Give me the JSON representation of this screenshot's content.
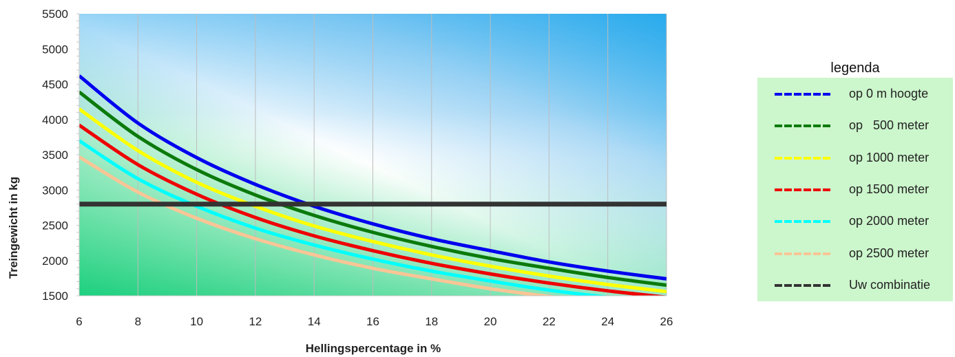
{
  "chart_data": {
    "type": "line",
    "xlabel": "Hellingspercentage in %",
    "ylabel": "Treingewicht in kg",
    "xlim": [
      6,
      26
    ],
    "ylim": [
      1500,
      5500
    ],
    "x_ticks": [
      6,
      8,
      10,
      12,
      14,
      16,
      18,
      20,
      22,
      24,
      26
    ],
    "y_ticks": [
      1500,
      2000,
      2500,
      3000,
      3500,
      4000,
      4500,
      5000,
      5500
    ],
    "grid": "vertical",
    "legend_position": "right",
    "x": [
      6,
      8,
      10,
      12,
      14,
      16,
      18,
      20,
      22,
      24,
      26
    ],
    "series": [
      {
        "name": "op 0 m hoogte",
        "color": "#0000ee",
        "values": [
          4620,
          3950,
          3460,
          3080,
          2770,
          2520,
          2310,
          2140,
          1980,
          1850,
          1740
        ]
      },
      {
        "name": "op   500 meter",
        "color": "#0b7a0b",
        "values": [
          4390,
          3760,
          3290,
          2930,
          2640,
          2400,
          2200,
          2030,
          1890,
          1760,
          1650
        ]
      },
      {
        "name": "op 1000 meter",
        "color": "#ffff00",
        "values": [
          4150,
          3560,
          3110,
          2770,
          2490,
          2270,
          2080,
          1920,
          1780,
          1660,
          1560
        ]
      },
      {
        "name": "op 1500 meter",
        "color": "#ee0000",
        "values": [
          3920,
          3360,
          2940,
          2610,
          2350,
          2140,
          1960,
          1810,
          1680,
          1570,
          1480
        ]
      },
      {
        "name": "op 2000 meter",
        "color": "#00ffff",
        "values": [
          3700,
          3160,
          2770,
          2460,
          2220,
          2020,
          1850,
          1710,
          1580,
          1480,
          1390
        ]
      },
      {
        "name": "op 2500 meter",
        "color": "#f9c596",
        "values": [
          3470,
          2970,
          2600,
          2310,
          2080,
          1890,
          1740,
          1600,
          1490,
          1390,
          1300
        ]
      },
      {
        "name": "Uw combinatie",
        "color": "#333333",
        "values": [
          2800,
          2800,
          2800,
          2800,
          2800,
          2800,
          2800,
          2800,
          2800,
          2800,
          2800
        ]
      }
    ]
  },
  "legend": {
    "title": "legenda",
    "items": [
      {
        "label": "op 0 m hoogte",
        "color": "#0000ee"
      },
      {
        "label": "op   500 meter",
        "color": "#0b7a0b"
      },
      {
        "label": "op 1000 meter",
        "color": "#ffff00"
      },
      {
        "label": "op 1500 meter",
        "color": "#ee0000"
      },
      {
        "label": "op 2000 meter",
        "color": "#00ffff"
      },
      {
        "label": "op 2500 meter",
        "color": "#f9c596"
      },
      {
        "label": "Uw combinatie",
        "color": "#333333"
      }
    ]
  }
}
